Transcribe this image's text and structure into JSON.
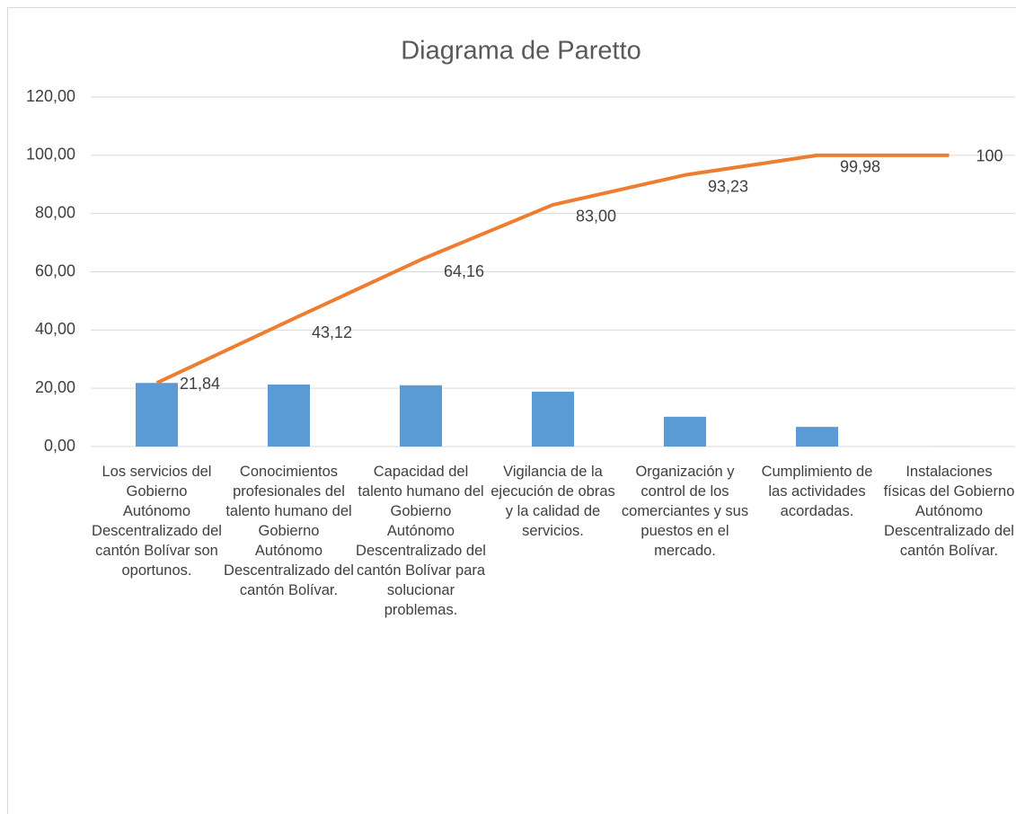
{
  "chart_data": {
    "type": "pareto",
    "title": "Diagrama de Paretto",
    "categories": [
      "Los servicios del Gobierno Autónomo Descentralizado del cantón Bolívar son oportunos.",
      "Conocimientos profesionales del talento humano del Gobierno Autónomo Descentralizado del cantón Bolívar.",
      "Capacidad del talento humano del Gobierno Autónomo Descentralizado del cantón Bolívar para solucionar problemas.",
      "Vigilancia de la ejecución de obras y la calidad de servicios.",
      "Organización y control de los comerciantes y sus puestos en el mercado.",
      "Cumplimiento de las actividades acordadas.",
      "Instalaciones físicas del Gobierno Autónomo Descentralizado del cantón Bolívar."
    ],
    "series": [
      {
        "type": "bar",
        "color": "#5b9bd5",
        "values": [
          21.84,
          21.28,
          21.04,
          18.84,
          10.23,
          6.75,
          0.02
        ]
      },
      {
        "type": "line",
        "color": "#ed7d31",
        "values": [
          21.84,
          43.12,
          64.16,
          83.0,
          93.23,
          99.98,
          100
        ],
        "value_labels": [
          "21,84",
          "43,12",
          "64,16",
          "83,00",
          "93,23",
          "99,98",
          "100"
        ]
      }
    ],
    "ylim": [
      0,
      120
    ],
    "yticks": [
      {
        "value": 0,
        "label": "0,00"
      },
      {
        "value": 20,
        "label": "20,00"
      },
      {
        "value": 40,
        "label": "40,00"
      },
      {
        "value": 60,
        "label": "60,00"
      },
      {
        "value": 80,
        "label": "80,00"
      },
      {
        "value": 100,
        "label": "100,00"
      },
      {
        "value": 120,
        "label": "120,00"
      }
    ],
    "grid": true
  }
}
